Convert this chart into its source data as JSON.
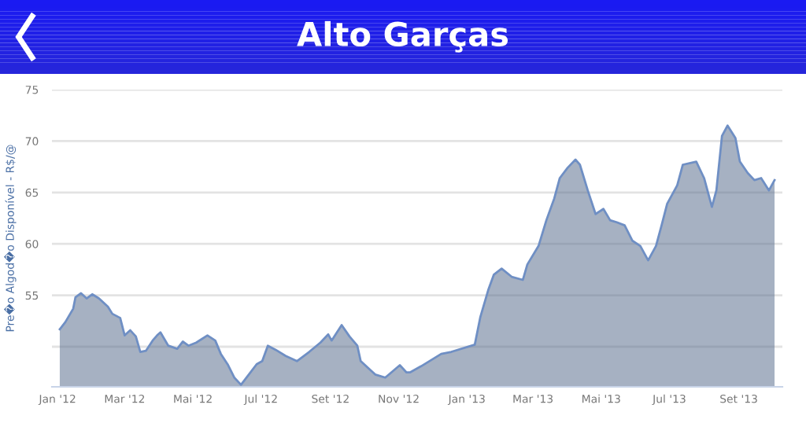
{
  "chart_data": {
    "type": "area",
    "title": "Alto Garças",
    "ylabel": "Pre�o Algod�o Disponível - R$/@",
    "xlim": [
      "2011-12-27",
      "2013-10-10"
    ],
    "xticks": [
      {
        "value": "2012-01-01",
        "label": "Jan '12"
      },
      {
        "value": "2012-03-01",
        "label": "Mar '12"
      },
      {
        "value": "2012-05-01",
        "label": "Mai '12"
      },
      {
        "value": "2012-07-01",
        "label": "Jul '12"
      },
      {
        "value": "2012-09-01",
        "label": "Set '12"
      },
      {
        "value": "2012-11-01",
        "label": "Nov '12"
      },
      {
        "value": "2013-01-01",
        "label": "Jan '13"
      },
      {
        "value": "2013-03-01",
        "label": "Mar '13"
      },
      {
        "value": "2013-05-01",
        "label": "Mai '13"
      },
      {
        "value": "2013-07-01",
        "label": "Jul '13"
      },
      {
        "value": "2013-09-01",
        "label": "Set '13"
      }
    ],
    "ylim": [
      46.1,
      75
    ],
    "yticks": [
      {
        "value": 50,
        "label": null
      },
      55,
      60,
      65,
      70,
      75
    ],
    "grid": "y",
    "legend": false,
    "marker": "none",
    "line_style": "solid",
    "series": [
      {
        "color": "#6f8fc4",
        "x": [
          "2012-01-03",
          "2012-01-08",
          "2012-01-15",
          "2012-01-17",
          "2012-01-22",
          "2012-01-27",
          "2012-02-01",
          "2012-02-07",
          "2012-02-15",
          "2012-02-19",
          "2012-02-26",
          "2012-03-01",
          "2012-03-06",
          "2012-03-11",
          "2012-03-15",
          "2012-03-20",
          "2012-03-26",
          "2012-03-30",
          "2012-04-02",
          "2012-04-09",
          "2012-04-17",
          "2012-04-22",
          "2012-04-27",
          "2012-05-04",
          "2012-05-14",
          "2012-05-21",
          "2012-05-26",
          "2012-06-01",
          "2012-06-07",
          "2012-06-13",
          "2012-06-20",
          "2012-06-27",
          "2012-07-02",
          "2012-07-07",
          "2012-07-14",
          "2012-07-23",
          "2012-08-02",
          "2012-08-13",
          "2012-08-23",
          "2012-08-30",
          "2012-09-02",
          "2012-09-11",
          "2012-09-18",
          "2012-09-25",
          "2012-09-28",
          "2012-10-06",
          "2012-10-11",
          "2012-10-20",
          "2012-11-02",
          "2012-11-08",
          "2012-11-11",
          "2012-11-21",
          "2012-12-09",
          "2012-12-18",
          "2013-01-08",
          "2013-01-13",
          "2013-01-20",
          "2013-01-25",
          "2013-02-01",
          "2013-02-10",
          "2013-02-20",
          "2013-02-24",
          "2013-03-06",
          "2013-03-13",
          "2013-03-20",
          "2013-03-25",
          "2013-04-01",
          "2013-04-08",
          "2013-04-12",
          "2013-04-19",
          "2013-04-26",
          "2013-05-03",
          "2013-05-09",
          "2013-05-15",
          "2013-05-22",
          "2013-05-29",
          "2013-06-05",
          "2013-06-12",
          "2013-06-19",
          "2013-06-24",
          "2013-06-29",
          "2013-07-08",
          "2013-07-13",
          "2013-07-25",
          "2013-08-01",
          "2013-08-08",
          "2013-08-12",
          "2013-08-17",
          "2013-08-22",
          "2013-08-29",
          "2013-09-02",
          "2013-09-09",
          "2013-09-15",
          "2013-09-21",
          "2013-09-28",
          "2013-10-03"
        ],
        "values": [
          51.7,
          52.4,
          53.7,
          54.8,
          55.2,
          54.7,
          55.1,
          54.7,
          53.9,
          53.2,
          52.8,
          51.1,
          51.6,
          51.0,
          49.5,
          49.6,
          50.6,
          51.1,
          51.4,
          50.1,
          49.8,
          50.5,
          50.1,
          50.4,
          51.1,
          50.6,
          49.3,
          48.3,
          47.0,
          46.3,
          47.3,
          48.3,
          48.6,
          50.1,
          49.7,
          49.1,
          48.6,
          49.5,
          50.4,
          51.2,
          50.6,
          52.1,
          51.0,
          50.1,
          48.6,
          47.8,
          47.3,
          47.0,
          48.2,
          47.5,
          47.5,
          48.1,
          49.3,
          49.5,
          50.2,
          52.9,
          55.5,
          57.0,
          57.6,
          56.8,
          56.5,
          58.0,
          59.8,
          62.3,
          64.4,
          66.4,
          67.4,
          68.2,
          67.7,
          65.2,
          62.9,
          63.4,
          62.3,
          62.1,
          61.8,
          60.3,
          59.8,
          58.4,
          59.8,
          61.8,
          63.9,
          65.7,
          67.7,
          68.0,
          66.4,
          63.6,
          65.2,
          70.5,
          71.5,
          70.3,
          68.0,
          66.9,
          66.2,
          66.4,
          65.2,
          66.2
        ]
      }
    ]
  }
}
